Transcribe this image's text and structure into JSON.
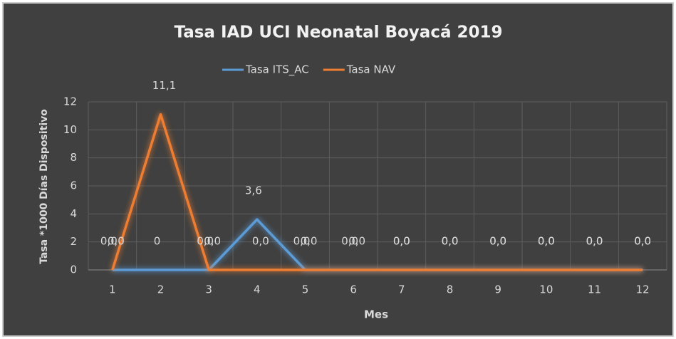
{
  "chart_data": {
    "type": "line",
    "title": "Tasa IAD UCI Neonatal Boyacá 2019",
    "x_label": "Mes",
    "y_label": "Tasa *1000 Días Dispositivo",
    "categories": [
      "1",
      "2",
      "3",
      "4",
      "5",
      "6",
      "7",
      "8",
      "9",
      "10",
      "11",
      "12"
    ],
    "series": [
      {
        "name": "Tasa ITS_AC",
        "color": "#5b9bd5",
        "values": [
          0,
          0,
          0,
          3.6,
          0,
          0,
          0,
          0,
          0,
          0,
          0,
          0
        ],
        "value_labels": [
          "0,0",
          "0",
          "0,0",
          "3,6",
          "0,0",
          "0,0",
          "0,0",
          "0,0",
          "0,0",
          "0,0",
          "0,0",
          "0,0"
        ]
      },
      {
        "name": "Tasa NAV",
        "color": "#ed7d31",
        "values": [
          0,
          11.1,
          0,
          0,
          0,
          0,
          0,
          0,
          0,
          0,
          0,
          0
        ],
        "value_labels": [
          "0,0",
          "11,1",
          "0,0",
          "0,0",
          "0,0",
          "0,0",
          "0,0",
          "0,0",
          "0,0",
          "0,0",
          "0,0",
          "0,0"
        ]
      }
    ],
    "ylim": [
      0,
      12
    ],
    "yticks": [
      0,
      2,
      4,
      6,
      8,
      10,
      12
    ],
    "grid": true,
    "legend": "top"
  }
}
